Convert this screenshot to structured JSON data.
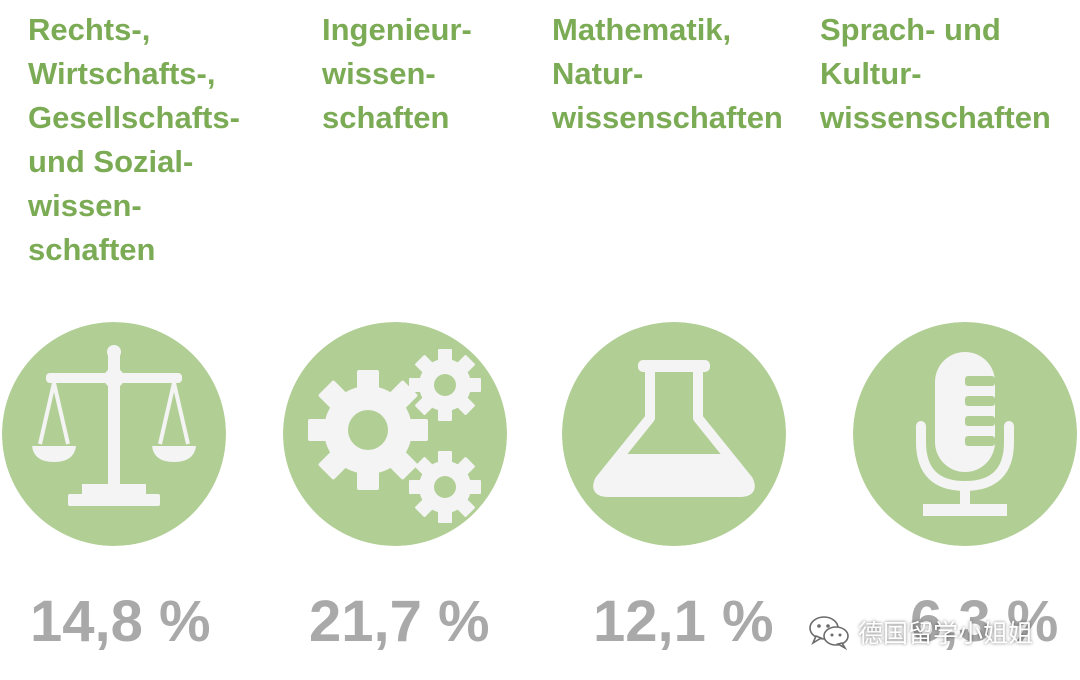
{
  "accent_green": "#7cab55",
  "circle_green": "#b1cf95",
  "icon_white": "#f4f4f4",
  "percent_gray": "#a9a9a9",
  "columns": [
    {
      "title_lines": [
        "Rechts-,",
        "Wirtschafts-,",
        "Gesellschafts-",
        "und Sozial-",
        "wissen-",
        "schaften"
      ],
      "icon": "scales-icon",
      "percent": "14,8 %"
    },
    {
      "title_lines": [
        "Ingenieur-",
        "wissen-",
        "schaften"
      ],
      "icon": "gears-icon",
      "percent": "21,7 %"
    },
    {
      "title_lines": [
        "Mathematik,",
        "Natur-",
        "wissenschaften"
      ],
      "icon": "flask-icon",
      "percent": "12,1 %"
    },
    {
      "title_lines": [
        "Sprach- und",
        "Kultur-",
        "wissenschaften"
      ],
      "icon": "microphone-icon",
      "percent": "6,3 %"
    }
  ],
  "watermark": {
    "icon": "wechat-icon",
    "text": "德国留学小姐姐"
  }
}
